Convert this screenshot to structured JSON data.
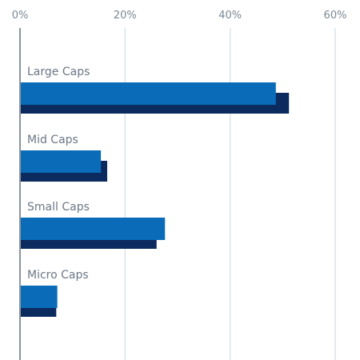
{
  "chart_data": {
    "type": "bar",
    "orientation": "horizontal",
    "categories": [
      "Large Caps",
      "Mid Caps",
      "Small Caps",
      "Micro Caps"
    ],
    "series": [
      {
        "color": "#0a6cb8",
        "values": [
          48.7,
          15.4,
          27.6,
          7.1
        ]
      },
      {
        "color": "#0b2a5e",
        "values": [
          51.2,
          16.6,
          26.0,
          6.9
        ]
      }
    ],
    "x_ticks": [
      "0%",
      "20%",
      "40%",
      "60%"
    ],
    "x_tick_values": [
      0,
      20,
      40,
      60
    ],
    "xlim": [
      0,
      60
    ],
    "grid": true,
    "tick_position": "top",
    "legend": "none",
    "colors": {
      "grid": "#d9e4ee",
      "axis": "#8a949e"
    }
  }
}
